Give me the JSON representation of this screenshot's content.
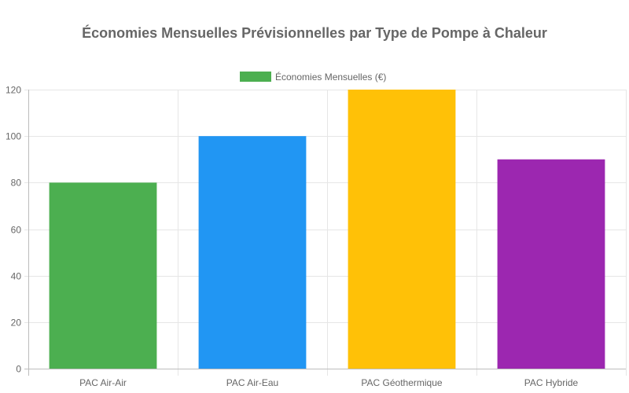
{
  "chart_data": {
    "type": "bar",
    "title": "Économies Mensuelles Prévisionnelles par Type de Pompe à Chaleur",
    "categories": [
      "PAC Air-Air",
      "PAC Air-Eau",
      "PAC Géothermique",
      "PAC Hybride"
    ],
    "series": [
      {
        "name": "Économies Mensuelles (€)",
        "values": [
          80,
          100,
          120,
          90
        ],
        "colors": [
          "#4CAF50",
          "#2196F3",
          "#FFC107",
          "#9C27B0"
        ]
      }
    ],
    "yticks": [
      0,
      20,
      40,
      60,
      80,
      100,
      120
    ],
    "ylim": [
      0,
      120
    ],
    "grid": true,
    "legend_position": "top"
  }
}
